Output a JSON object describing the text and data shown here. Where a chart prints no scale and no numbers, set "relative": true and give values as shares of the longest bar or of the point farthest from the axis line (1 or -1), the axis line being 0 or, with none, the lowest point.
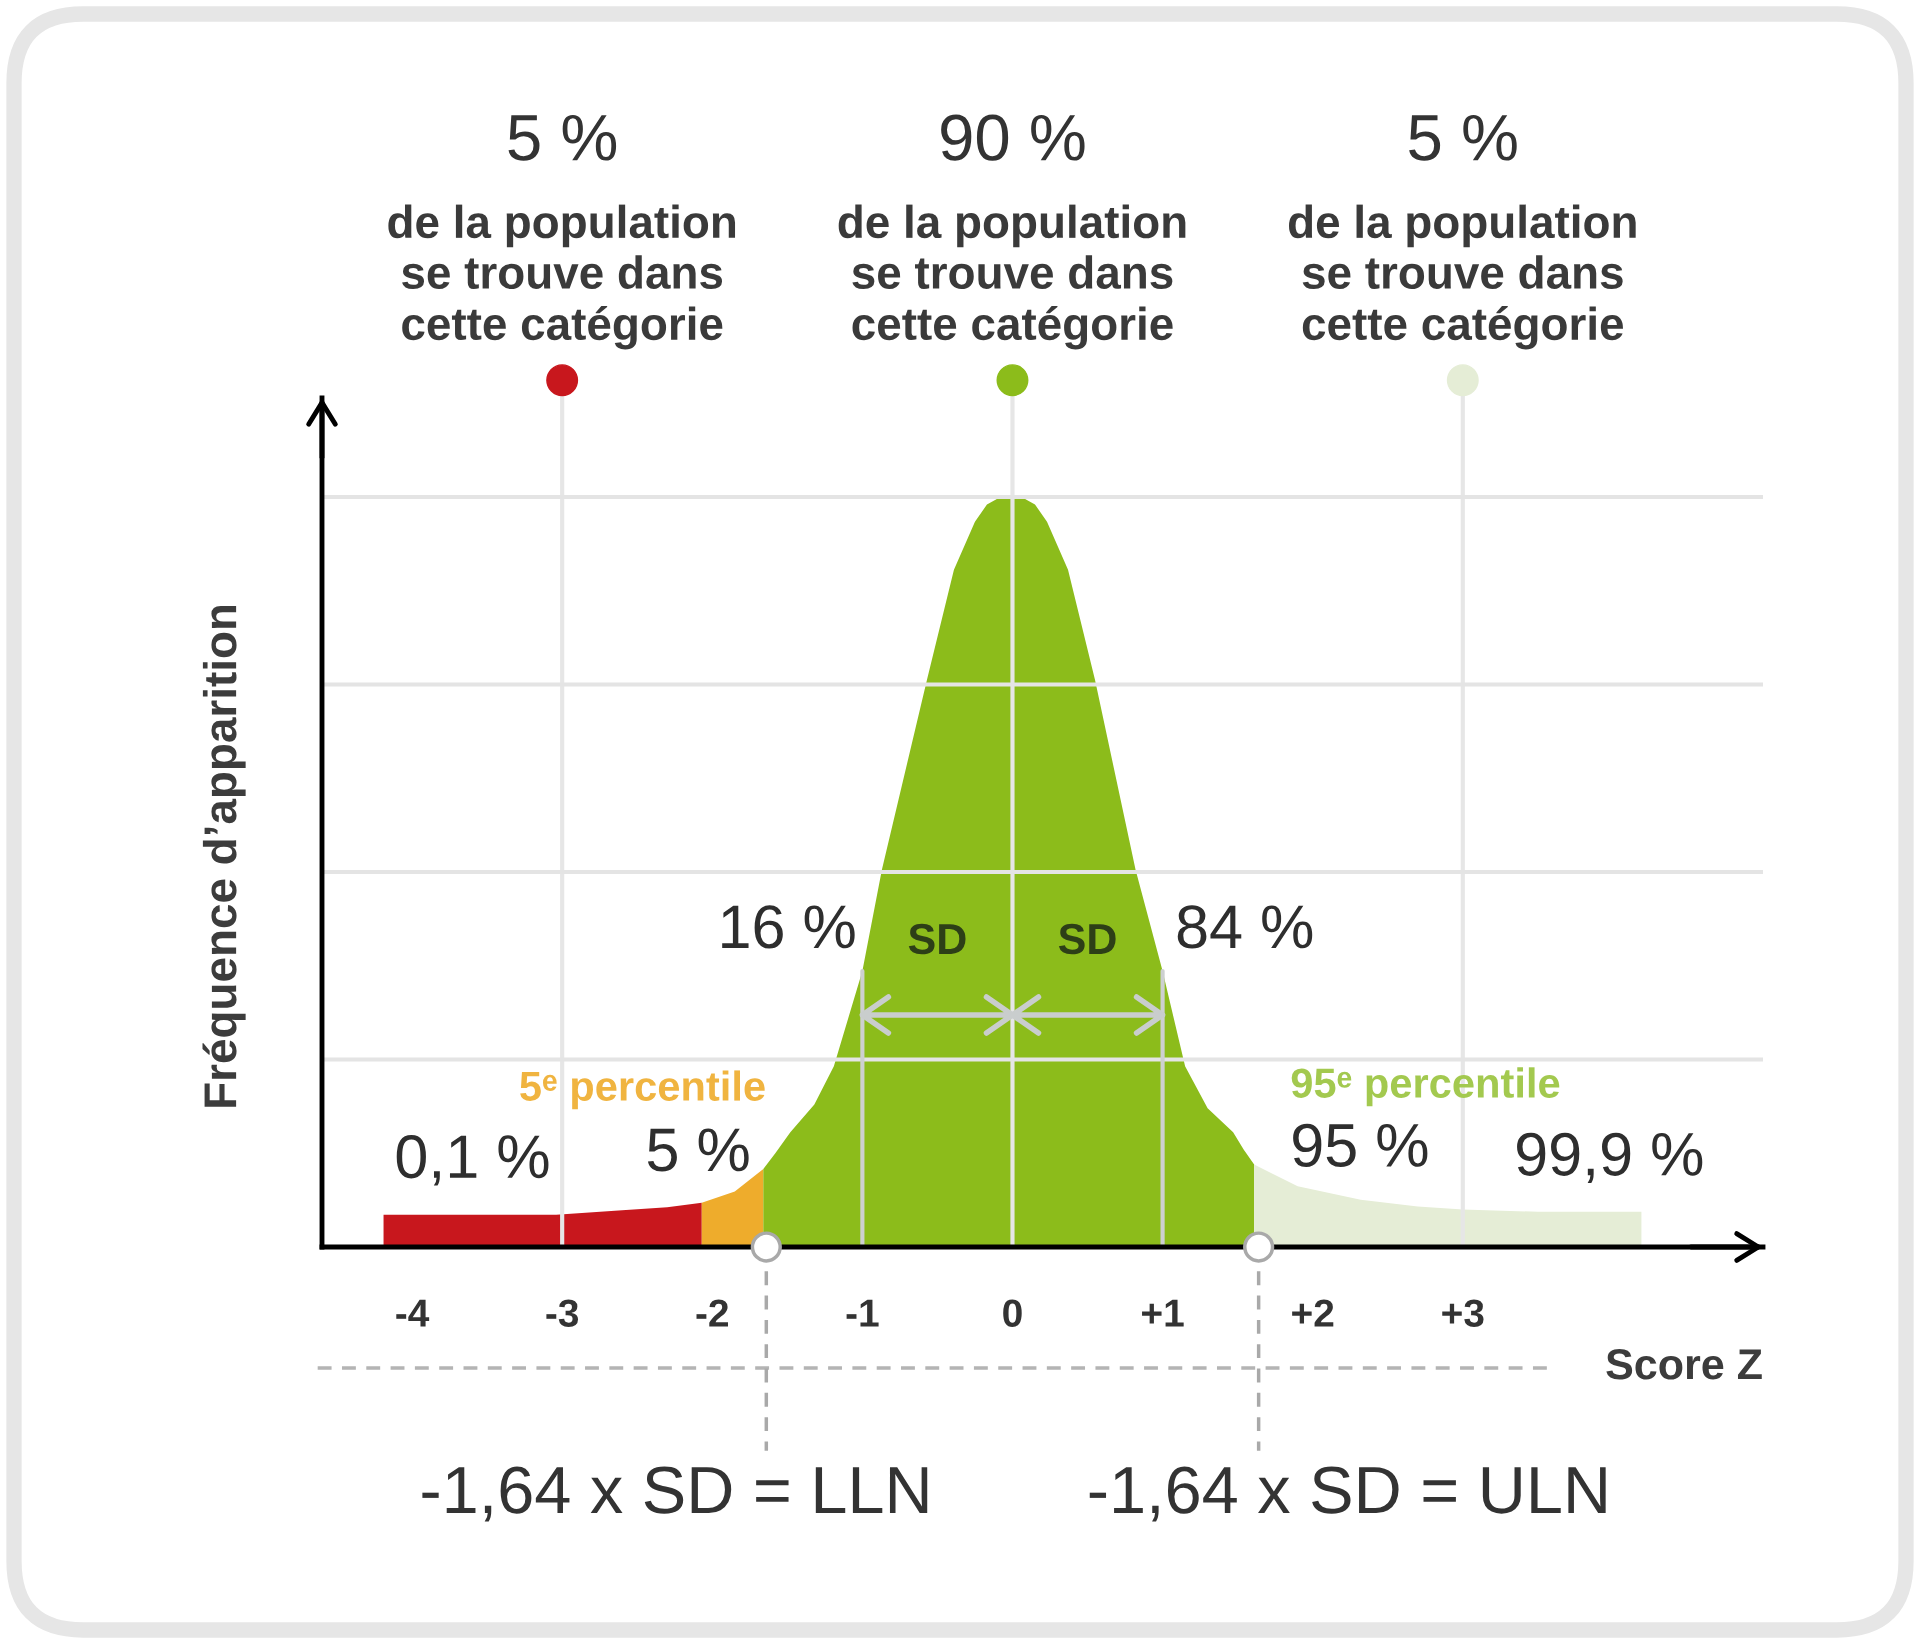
{
  "chart_data": {
    "type": "area",
    "relative": true,
    "ylabel": "Fréquence d’apparition",
    "xlabel": "Score Z",
    "xlim": [
      -4.6,
      5.0
    ],
    "xticks": [
      -4,
      -3,
      -2,
      -1,
      0,
      {
        "value": 1,
        "label": "+1"
      },
      {
        "value": 2,
        "label": "+2"
      },
      {
        "value": 3,
        "label": "+3"
      }
    ],
    "series": [
      {
        "color": "#c8171d",
        "x": [
          -4.19,
          -3.04,
          -2.6,
          -2.3,
          -2.07
        ],
        "values": [
          0.043,
          0.043,
          0.049,
          0.053,
          0.059
        ]
      },
      {
        "color": "#eeac2c",
        "x": [
          -2.07,
          -1.85,
          -1.66
        ],
        "values": [
          0.059,
          0.074,
          0.104
        ]
      },
      {
        "color": "#8cbc1b",
        "x": [
          -1.66,
          -1.58,
          -1.48,
          -1.32,
          -1.19,
          -1.0,
          -0.87,
          -0.57,
          -0.39,
          -0.25,
          -0.17,
          -0.08,
          0.06,
          0.15,
          0.23,
          0.37,
          0.55,
          0.82,
          1.0,
          1.15,
          1.3,
          1.47,
          1.54,
          1.61
        ],
        "values": [
          0.104,
          0.125,
          0.153,
          0.19,
          0.241,
          0.368,
          0.503,
          0.756,
          0.903,
          0.967,
          0.99,
          1,
          1,
          0.99,
          0.967,
          0.903,
          0.756,
          0.503,
          0.368,
          0.241,
          0.185,
          0.153,
          0.13,
          0.11
        ]
      },
      {
        "color": "#e5edd6",
        "x": [
          1.61,
          1.9,
          2.32,
          2.7,
          3.0,
          3.5,
          4.19
        ],
        "values": [
          0.11,
          0.081,
          0.063,
          0.054,
          0.05,
          0.047,
          0.047
        ]
      }
    ],
    "ref_lines": [
      {
        "axis": "x",
        "value": -3,
        "color": "#e6e6e6"
      },
      {
        "axis": "x",
        "value": 0,
        "color": "#e6e6e6"
      },
      {
        "axis": "x",
        "value": 3,
        "color": "#e6e6e6"
      },
      {
        "axis": "x",
        "value": -1.64,
        "label": "-1,64 x SD = LLN",
        "color": "#a9a9a9",
        "line_style": "dashed"
      },
      {
        "axis": "x",
        "value": 1.64,
        "label": "-1,64 x SD = ULN",
        "color": "#a9a9a9",
        "line_style": "dashed"
      }
    ],
    "annotations": [
      "5 %\nde la population\nse trouve dans\ncette catégorie",
      "90 %\nde la population\nse trouve dans\ncette catégorie",
      "5 %\nde la population\nse trouve dans\ncette catégorie",
      {
        "text": "0,1 %",
        "x": -3.04,
        "y": 0.043
      },
      {
        "text": "5 %",
        "x": -1.66,
        "y": 0.104
      },
      {
        "text": "16 %",
        "x": -1.0,
        "y": 0.368
      },
      {
        "text": "84 %",
        "x": 1.0,
        "y": 0.368
      },
      {
        "text": "95 %",
        "x": 1.61,
        "y": 0.11
      },
      {
        "text": "99,9 %",
        "x": 3.0,
        "y": 0.05
      },
      {
        "text": "5ᵉ percentile",
        "x": -1.66,
        "y": 0.104
      },
      {
        "text": "95ᵉ percentile",
        "x": 1.61,
        "y": 0.11
      },
      {
        "text": "SD",
        "x": -1.0,
        "y": 0.368
      },
      {
        "text": "SD",
        "x": 1.0,
        "y": 0.368
      }
    ],
    "grid": "y"
  }
}
